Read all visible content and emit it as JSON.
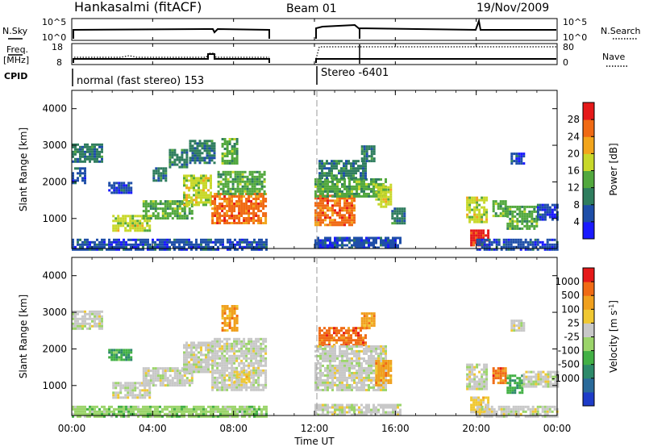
{
  "header": {
    "station": "Hankasalmi (fitACF)",
    "beam": "Beam 01",
    "date": "19/Nov/2009"
  },
  "status_panels": {
    "nsky_label": "N.Sky",
    "nsearch_label": "N.Search",
    "nsky_ticks": [
      "10^5",
      "10^0"
    ],
    "nsearch_ticks": [
      "10^5",
      "10^0"
    ],
    "freq_label_1": "Freq.",
    "freq_label_2": "[MHz]",
    "freq_ticks": [
      "18",
      "8"
    ],
    "nave_label": "Nave",
    "nave_ticks": [
      "80",
      "0"
    ],
    "cpid_label": "CPID",
    "cpid_modes": [
      {
        "name": "normal (fast stereo) 153",
        "start_hour": 0
      },
      {
        "name": "Stereo -6401",
        "start_hour": 12
      }
    ]
  },
  "chart_data": [
    {
      "type": "heatmap",
      "name": "power",
      "ylabel": "Slant Range [km]",
      "ylim": [
        180,
        4500
      ],
      "yticks": [
        "1000",
        "2000",
        "3000",
        "4000"
      ],
      "xlim": [
        0,
        24
      ],
      "colorbar_label": "Power [dB]",
      "colorbar_ticks": [
        "4",
        "8",
        "12",
        "16",
        "20",
        "24",
        "28"
      ],
      "colors": [
        "#1a1aff",
        "#1e4ea8",
        "#2f7d5e",
        "#52a83e",
        "#c8d82a",
        "#f2a51c",
        "#f06a14",
        "#e51919"
      ],
      "patches": [
        {
          "t0": 0.0,
          "t1": 1.5,
          "r0": 2550,
          "r1": 3050,
          "level": 2
        },
        {
          "t0": 0.0,
          "t1": 0.6,
          "r0": 2000,
          "r1": 2400,
          "level": 1
        },
        {
          "t0": 1.8,
          "t1": 2.9,
          "r0": 1700,
          "r1": 2000,
          "level": 1
        },
        {
          "t0": 2.0,
          "t1": 3.8,
          "r0": 700,
          "r1": 1100,
          "level": 4
        },
        {
          "t0": 3.5,
          "t1": 6.0,
          "r0": 1000,
          "r1": 1500,
          "level": 3
        },
        {
          "t0": 4.0,
          "t1": 4.6,
          "r0": 2050,
          "r1": 2400,
          "level": 2
        },
        {
          "t0": 4.8,
          "t1": 5.7,
          "r0": 2400,
          "r1": 2900,
          "level": 2
        },
        {
          "t0": 5.5,
          "t1": 6.9,
          "r0": 1400,
          "r1": 2200,
          "level": 4
        },
        {
          "t0": 5.8,
          "t1": 7.0,
          "r0": 2550,
          "r1": 3150,
          "level": 2
        },
        {
          "t0": 6.9,
          "t1": 9.6,
          "r0": 850,
          "r1": 1700,
          "level": 6
        },
        {
          "t0": 7.2,
          "t1": 9.5,
          "r0": 1700,
          "r1": 2300,
          "level": 3
        },
        {
          "t0": 7.4,
          "t1": 8.2,
          "r0": 2500,
          "r1": 3200,
          "level": 3
        },
        {
          "t0": 0.0,
          "t1": 9.6,
          "r0": 180,
          "r1": 450,
          "level": 1
        },
        {
          "t0": 12.0,
          "t1": 14.0,
          "r0": 850,
          "r1": 1650,
          "level": 6
        },
        {
          "t0": 12.0,
          "t1": 15.5,
          "r0": 1600,
          "r1": 2100,
          "level": 3
        },
        {
          "t0": 12.2,
          "t1": 14.5,
          "r0": 2100,
          "r1": 2600,
          "level": 2
        },
        {
          "t0": 14.3,
          "t1": 15.0,
          "r0": 2600,
          "r1": 3000,
          "level": 2
        },
        {
          "t0": 15.0,
          "t1": 15.8,
          "r0": 1350,
          "r1": 1950,
          "level": 4
        },
        {
          "t0": 15.8,
          "t1": 16.4,
          "r0": 900,
          "r1": 1300,
          "level": 2
        },
        {
          "t0": 12.0,
          "t1": 16.2,
          "r0": 180,
          "r1": 500,
          "level": 1
        },
        {
          "t0": 19.5,
          "t1": 20.5,
          "r0": 900,
          "r1": 1600,
          "level": 4
        },
        {
          "t0": 19.7,
          "t1": 20.6,
          "r0": 300,
          "r1": 700,
          "level": 7
        },
        {
          "t0": 20.8,
          "t1": 21.5,
          "r0": 1100,
          "r1": 1500,
          "level": 3
        },
        {
          "t0": 21.5,
          "t1": 23.0,
          "r0": 750,
          "r1": 1350,
          "level": 3
        },
        {
          "t0": 23.0,
          "t1": 24.0,
          "r0": 1000,
          "r1": 1400,
          "level": 1
        },
        {
          "t0": 21.7,
          "t1": 22.3,
          "r0": 2500,
          "r1": 2800,
          "level": 1
        },
        {
          "t0": 20.0,
          "t1": 24.0,
          "r0": 180,
          "r1": 450,
          "level": 1
        }
      ]
    },
    {
      "type": "heatmap",
      "name": "velocity",
      "ylabel": "Slant Range [km]",
      "ylim": [
        180,
        4500
      ],
      "yticks": [
        "1000",
        "2000",
        "3000",
        "4000"
      ],
      "xlim": [
        0,
        24
      ],
      "xticks": [
        "00:00",
        "04:00",
        "08:00",
        "12:00",
        "16:00",
        "20:00",
        "00:00"
      ],
      "xlabel": "Time UT",
      "colorbar_label": "Velocity [m s",
      "colorbar_label_sup": "-1",
      "colorbar_label_end": "]",
      "colorbar_ticks": [
        "1000",
        "500",
        "100",
        "25",
        "-25",
        "-100",
        "-500",
        "-1000"
      ],
      "colors": [
        "#1e3cc8",
        "#2a6a9a",
        "#2d8a6a",
        "#42b045",
        "#9bd46a",
        "#c8c8c8",
        "#f0c832",
        "#f0a01e",
        "#f06a14",
        "#e51919"
      ],
      "patches": [
        {
          "t0": 0.0,
          "t1": 1.5,
          "r0": 2550,
          "r1": 3050,
          "level": 5
        },
        {
          "t0": 1.8,
          "t1": 2.9,
          "r0": 1700,
          "r1": 2000,
          "level": 3
        },
        {
          "t0": 2.0,
          "t1": 3.8,
          "r0": 700,
          "r1": 1100,
          "level": 5
        },
        {
          "t0": 3.5,
          "t1": 6.0,
          "r0": 1000,
          "r1": 1500,
          "level": 5
        },
        {
          "t0": 5.5,
          "t1": 6.9,
          "r0": 1400,
          "r1": 2200,
          "level": 5
        },
        {
          "t0": 6.9,
          "t1": 9.6,
          "r0": 850,
          "r1": 2300,
          "level": 5
        },
        {
          "t0": 7.4,
          "t1": 8.2,
          "r0": 2500,
          "r1": 3200,
          "level": 7
        },
        {
          "t0": 8.0,
          "t1": 8.8,
          "r0": 1100,
          "r1": 1400,
          "level": 6
        },
        {
          "t0": 0.0,
          "t1": 9.6,
          "r0": 180,
          "r1": 450,
          "level": 4
        },
        {
          "t0": 12.2,
          "t1": 14.5,
          "r0": 2100,
          "r1": 2600,
          "level": 8
        },
        {
          "t0": 12.0,
          "t1": 15.5,
          "r0": 850,
          "r1": 2100,
          "level": 5
        },
        {
          "t0": 14.3,
          "t1": 15.0,
          "r0": 2600,
          "r1": 3000,
          "level": 7
        },
        {
          "t0": 15.0,
          "t1": 15.8,
          "r0": 1000,
          "r1": 1700,
          "level": 7
        },
        {
          "t0": 12.0,
          "t1": 16.2,
          "r0": 180,
          "r1": 500,
          "level": 5
        },
        {
          "t0": 19.5,
          "t1": 20.5,
          "r0": 900,
          "r1": 1600,
          "level": 5
        },
        {
          "t0": 19.7,
          "t1": 20.6,
          "r0": 300,
          "r1": 700,
          "level": 6
        },
        {
          "t0": 20.8,
          "t1": 21.5,
          "r0": 1100,
          "r1": 1500,
          "level": 8
        },
        {
          "t0": 21.5,
          "t1": 22.3,
          "r0": 800,
          "r1": 1300,
          "level": 3
        },
        {
          "t0": 22.3,
          "t1": 24.0,
          "r0": 1000,
          "r1": 1400,
          "level": 5
        },
        {
          "t0": 21.7,
          "t1": 22.3,
          "r0": 2500,
          "r1": 2800,
          "level": 5
        },
        {
          "t0": 20.0,
          "t1": 24.0,
          "r0": 180,
          "r1": 450,
          "level": 5
        }
      ]
    }
  ]
}
